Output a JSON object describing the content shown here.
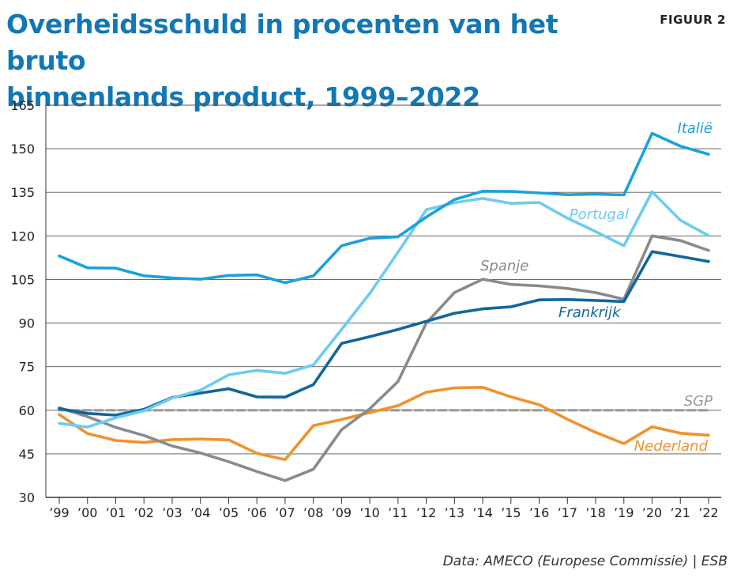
{
  "header": {
    "title_line1": "Overheidsschuld in procenten van het bruto",
    "title_line2": "binnenlands product, 1999–2022",
    "figure_label": "FIGUUR 2"
  },
  "footer": {
    "source": "Data: AMECO (Europese Commissie) | ESB"
  },
  "chart_data": {
    "type": "line",
    "title": "Overheidsschuld in procenten van het bruto binnenlands product, 1999–2022",
    "xlabel": "",
    "ylabel": "",
    "ylim": [
      30,
      165
    ],
    "yticks": [
      30,
      45,
      60,
      75,
      90,
      105,
      120,
      135,
      150,
      165
    ],
    "grid": true,
    "categories": [
      "’99",
      "’00",
      "’01",
      "’02",
      "’03",
      "’04",
      "’05",
      "’06",
      "’07",
      "’08",
      "’09",
      "’10",
      "’11",
      "’12",
      "’13",
      "’14",
      "’15",
      "’16",
      "’17",
      "’18",
      "’19",
      "’20",
      "’21",
      "’22"
    ],
    "series": [
      {
        "name": "Italië",
        "color": "#1ba1dc",
        "values": [
          113.1,
          109,
          108.9,
          106.3,
          105.5,
          105.1,
          106.4,
          106.6,
          103.9,
          106.2,
          116.6,
          119.2,
          119.7,
          126.5,
          132.5,
          135.4,
          135.3,
          134.8,
          134.2,
          134.4,
          134.1,
          155.3,
          150.9,
          148.1
        ]
      },
      {
        "name": "Portugal",
        "color": "#6dcbf2",
        "values": [
          55.5,
          54.2,
          57.4,
          59.8,
          64.2,
          66.9,
          72.2,
          73.7,
          72.7,
          75.6,
          87.8,
          100.2,
          114.4,
          129,
          131.4,
          132.9,
          131.2,
          131.5,
          126.1,
          121.5,
          116.6,
          135.2,
          125.4,
          120.1
        ]
      },
      {
        "name": "Spanje",
        "color": "#8a8a8d",
        "values": [
          60.9,
          57.8,
          54.1,
          51.3,
          47.7,
          45.3,
          42.3,
          38.9,
          35.8,
          39.7,
          53.3,
          60.5,
          69.9,
          90,
          100.5,
          105.1,
          103.3,
          102.8,
          101.9,
          100.5,
          98.2,
          120,
          118.4,
          115
        ]
      },
      {
        "name": "Frankrijk",
        "color": "#10679a",
        "values": [
          60.5,
          58.9,
          58.3,
          60.3,
          64.4,
          65.9,
          67.4,
          64.6,
          64.5,
          68.8,
          83,
          85.3,
          87.8,
          90.6,
          93.4,
          94.9,
          95.6,
          98,
          98.1,
          97.8,
          97.4,
          114.6,
          112.9,
          111.2
        ]
      },
      {
        "name": "Nederland",
        "color": "#f0922b",
        "values": [
          58.5,
          52,
          49.6,
          48.9,
          49.9,
          50.1,
          49.8,
          45.2,
          43,
          54.7,
          56.8,
          59.2,
          61.6,
          66.2,
          67.7,
          67.9,
          64.6,
          61.9,
          56.9,
          52.4,
          48.5,
          54.3,
          52.1,
          51.4
        ]
      },
      {
        "name": "SGP",
        "color": "#9a9a9c",
        "dashed": true,
        "values": [
          60,
          60,
          60,
          60,
          60,
          60,
          60,
          60,
          60,
          60,
          60,
          60,
          60,
          60,
          60,
          60,
          60,
          60,
          60,
          60,
          60,
          60,
          60,
          60
        ]
      }
    ]
  }
}
